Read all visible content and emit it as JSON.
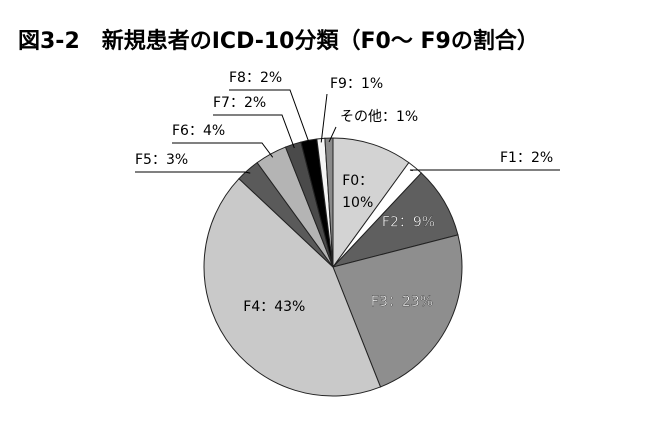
{
  "chart_data": {
    "type": "pie",
    "title": "図3-2　新規患者のICD-10分類（F0～ F9の割合）",
    "values": [
      10,
      2,
      9,
      23,
      43,
      3,
      4,
      2,
      2,
      1,
      1
    ],
    "value_labels": [
      "F0：10%",
      "F1：2%",
      "F2：9%",
      "F3：23%",
      "F4：43%",
      "F5：3%",
      "F6：4%",
      "F7：2%",
      "F8：2%",
      "F9：1%",
      "その他：1%"
    ],
    "colors": [
      "#d3d3d3",
      "#ffffff",
      "#5f5f5f",
      "#8e8e8e",
      "#c9c9c9",
      "#5a5a5a",
      "#b4b4b4",
      "#4a4a4a",
      "#000000",
      "#f4f4f4",
      "#8a8a8a"
    ]
  }
}
